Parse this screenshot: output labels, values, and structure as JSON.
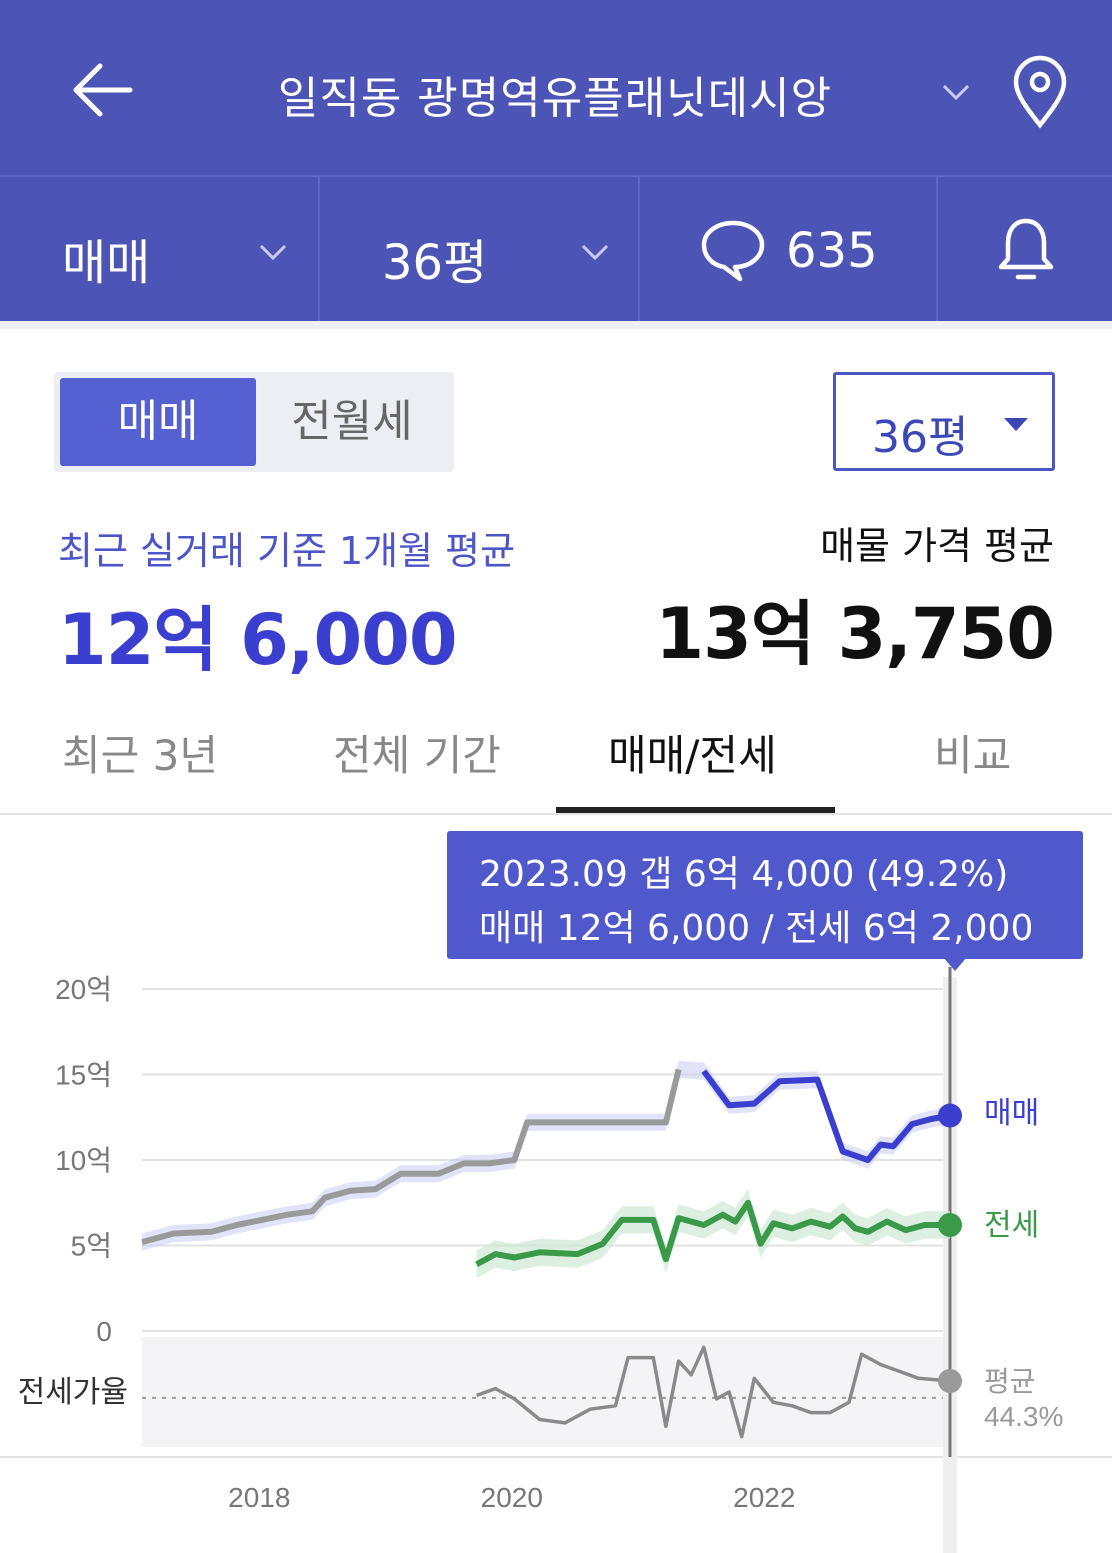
{
  "header": {
    "title": "일직동 광명역유플래닛데시앙",
    "back_icon": "arrow-left-icon",
    "location_icon": "map-pin-icon"
  },
  "subbar": {
    "trade_type": "매매",
    "size": "36평",
    "comment_count": "635",
    "comment_icon": "speech-bubble-icon",
    "bell_icon": "bell-icon"
  },
  "toggle": {
    "active": "매매",
    "inactive": "전월세"
  },
  "size_dropdown": {
    "label": "36평"
  },
  "summary": {
    "recent_label": "최근 실거래 기준 1개월 평균",
    "recent_value": "12억 6,000",
    "listing_label": "매물 가격 평균",
    "listing_value": "13억 3,750"
  },
  "tabs": [
    {
      "label": "최근 3년",
      "active": false
    },
    {
      "label": "전체 기간",
      "active": false
    },
    {
      "label": "매매/전세",
      "active": true
    },
    {
      "label": "비교",
      "active": false
    }
  ],
  "tooltip": {
    "line1": "2023.09  갭 6억 4,000 (49.2%)",
    "line2": "매매 12억 6,000 / 전세 6억 2,000"
  },
  "colors": {
    "header_bg": "#4c55b5",
    "sale": "#3b3fd0",
    "jeonse": "#3a9a4a",
    "history": "#9a9a9a"
  },
  "chart_data": {
    "type": "line",
    "y_axis_labels": [
      "20억",
      "15억",
      "10억",
      "5억",
      "0"
    ],
    "ylim": [
      0,
      20
    ],
    "x_tick_labels": [
      "2018",
      "2020",
      "2022"
    ],
    "ratio_label": "전세가율",
    "series": [
      {
        "name": "매매",
        "unit": "억",
        "points": [
          [
            2017.15,
            5.2
          ],
          [
            2017.4,
            5.7
          ],
          [
            2017.7,
            5.8
          ],
          [
            2017.9,
            6.2
          ],
          [
            2018.1,
            6.5
          ],
          [
            2018.3,
            6.8
          ],
          [
            2018.5,
            7.0
          ],
          [
            2018.6,
            7.8
          ],
          [
            2018.8,
            8.2
          ],
          [
            2019.0,
            8.3
          ],
          [
            2019.2,
            9.2
          ],
          [
            2019.5,
            9.2
          ],
          [
            2019.7,
            9.8
          ],
          [
            2019.9,
            9.8
          ],
          [
            2020.1,
            10.0
          ],
          [
            2020.2,
            12.2
          ],
          [
            2020.6,
            12.2
          ],
          [
            2021.0,
            12.2
          ],
          [
            2021.3,
            12.2
          ],
          [
            2021.4,
            15.3
          ],
          [
            2021.6,
            15.2
          ],
          [
            2021.8,
            13.2
          ],
          [
            2022.0,
            13.3
          ],
          [
            2022.2,
            14.6
          ],
          [
            2022.5,
            14.7
          ],
          [
            2022.7,
            10.5
          ],
          [
            2022.9,
            10.0
          ],
          [
            2023.0,
            10.9
          ],
          [
            2023.1,
            10.8
          ],
          [
            2023.25,
            12.1
          ],
          [
            2023.4,
            12.4
          ],
          [
            2023.55,
            12.6
          ]
        ]
      },
      {
        "name": "전세",
        "unit": "억",
        "points": [
          [
            2019.8,
            3.9
          ],
          [
            2019.95,
            4.5
          ],
          [
            2020.1,
            4.3
          ],
          [
            2020.3,
            4.6
          ],
          [
            2020.6,
            4.5
          ],
          [
            2020.8,
            5.1
          ],
          [
            2020.95,
            6.5
          ],
          [
            2021.2,
            6.5
          ],
          [
            2021.3,
            4.2
          ],
          [
            2021.4,
            6.6
          ],
          [
            2021.6,
            6.2
          ],
          [
            2021.75,
            6.8
          ],
          [
            2021.85,
            6.4
          ],
          [
            2021.95,
            7.5
          ],
          [
            2022.05,
            5.1
          ],
          [
            2022.15,
            6.3
          ],
          [
            2022.3,
            6.0
          ],
          [
            2022.45,
            6.4
          ],
          [
            2022.6,
            6.1
          ],
          [
            2022.7,
            6.7
          ],
          [
            2022.8,
            6.0
          ],
          [
            2022.9,
            5.8
          ],
          [
            2023.05,
            6.4
          ],
          [
            2023.2,
            5.9
          ],
          [
            2023.35,
            6.2
          ],
          [
            2023.55,
            6.2
          ]
        ]
      },
      {
        "name": "전세가율",
        "unit": "%",
        "points": [
          [
            2019.8,
            45
          ],
          [
            2019.95,
            47
          ],
          [
            2020.1,
            44
          ],
          [
            2020.3,
            38
          ],
          [
            2020.5,
            37
          ],
          [
            2020.7,
            41
          ],
          [
            2020.9,
            42
          ],
          [
            2021.0,
            56
          ],
          [
            2021.2,
            56
          ],
          [
            2021.3,
            36
          ],
          [
            2021.4,
            55
          ],
          [
            2021.5,
            51
          ],
          [
            2021.6,
            59
          ],
          [
            2021.7,
            44
          ],
          [
            2021.8,
            46
          ],
          [
            2021.9,
            33
          ],
          [
            2022.0,
            50
          ],
          [
            2022.15,
            43
          ],
          [
            2022.3,
            42
          ],
          [
            2022.45,
            40
          ],
          [
            2022.6,
            40
          ],
          [
            2022.75,
            43
          ],
          [
            2022.85,
            57
          ],
          [
            2023.0,
            54
          ],
          [
            2023.15,
            52
          ],
          [
            2023.3,
            50
          ],
          [
            2023.55,
            49.2
          ]
        ]
      }
    ],
    "average_ratio": {
      "label": "평균",
      "value": "44.3%"
    },
    "highlight": {
      "date": "2023.09"
    }
  }
}
